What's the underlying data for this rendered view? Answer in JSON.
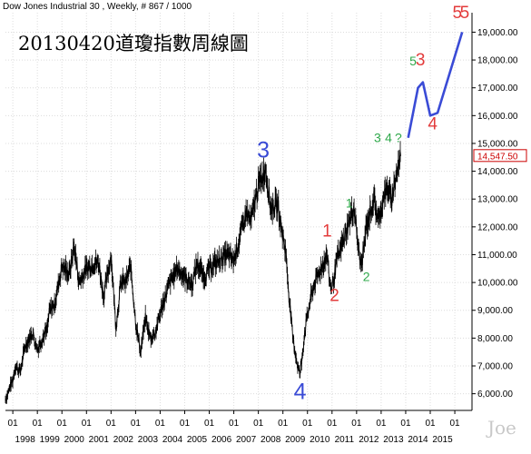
{
  "header": {
    "text": "Dow Jones Industrial 30 , Weekly, # 867 / 1000"
  },
  "annotation_title": "20130420道瓊指數周線圖",
  "signature": "Joe",
  "colors": {
    "price": "#000000",
    "grid": "#dcdcdc",
    "wave_blue": "#3a4bd6",
    "wave_red": "#e33b3b",
    "wave_green": "#2ea84a",
    "last_box": "#cc0000"
  },
  "chart_data": {
    "type": "line",
    "title": "Dow Jones Industrial 30 , Weekly, # 867 / 1000",
    "ylim": [
      5400,
      19700
    ],
    "xlim": [
      1997.2,
      2016.2
    ],
    "y_ticks": [
      6000,
      7000,
      8000,
      9000,
      10000,
      11000,
      12000,
      13000,
      14000,
      15000,
      16000,
      17000,
      18000,
      19000
    ],
    "y_tick_labels": [
      "6,000.00",
      "7,000.00",
      "8,000.00",
      "9,000.00",
      "10,000.00",
      "11,000.00",
      "12,000.00",
      "13,000.00",
      "14,000.00",
      "15,000.00",
      "16,000.00",
      "17,000.00",
      "18,000.00",
      "19,000.00"
    ],
    "x_ticks": [
      1997.5,
      1998.5,
      1999.5,
      2000.5,
      2001.5,
      2002.5,
      2003.5,
      2004.5,
      2005.5,
      2006.5,
      2007.5,
      2008.5,
      2009.5,
      2010.5,
      2011.5,
      2012.5,
      2013.5,
      2014.5,
      2015.5
    ],
    "month_labels": [
      "01",
      "01",
      "01",
      "01",
      "01",
      "01",
      "01",
      "01",
      "01",
      "01",
      "01",
      "01",
      "01",
      "01",
      "01",
      "01",
      "01",
      "01",
      "01"
    ],
    "year_labels": [
      "1998",
      "1999",
      "2000",
      "2001",
      "2002",
      "2003",
      "2004",
      "2005",
      "2006",
      "2007",
      "2008",
      "2009",
      "2010",
      "2011",
      "2012",
      "2013",
      "2014",
      "2015"
    ],
    "last_value": 14547.5,
    "last_value_label": "14,547.50",
    "series": [
      {
        "name": "Dow Jones Industrial 30",
        "points": [
          [
            1997.2,
            5800
          ],
          [
            1997.5,
            6500
          ],
          [
            1997.6,
            7000
          ],
          [
            1997.8,
            6800
          ],
          [
            1998.0,
            7700
          ],
          [
            1998.3,
            8200
          ],
          [
            1998.5,
            7600
          ],
          [
            1998.7,
            8000
          ],
          [
            1998.9,
            8300
          ],
          [
            1999.0,
            9000
          ],
          [
            1999.2,
            9200
          ],
          [
            1999.5,
            10600
          ],
          [
            1999.8,
            10300
          ],
          [
            2000.0,
            11300
          ],
          [
            2000.2,
            10000
          ],
          [
            2000.5,
            10500
          ],
          [
            2000.8,
            10700
          ],
          [
            2001.0,
            10700
          ],
          [
            2001.2,
            9500
          ],
          [
            2001.5,
            11000
          ],
          [
            2001.7,
            8400
          ],
          [
            2001.9,
            10000
          ],
          [
            2002.1,
            10000
          ],
          [
            2002.3,
            10600
          ],
          [
            2002.5,
            8600
          ],
          [
            2002.7,
            7500
          ],
          [
            2002.9,
            8700
          ],
          [
            2003.1,
            8000
          ],
          [
            2003.3,
            8200
          ],
          [
            2003.6,
            9200
          ],
          [
            2003.9,
            10000
          ],
          [
            2004.2,
            10500
          ],
          [
            2004.5,
            10200
          ],
          [
            2004.8,
            9900
          ],
          [
            2005.0,
            10700
          ],
          [
            2005.3,
            10200
          ],
          [
            2005.6,
            10600
          ],
          [
            2005.9,
            10800
          ],
          [
            2006.2,
            11000
          ],
          [
            2006.5,
            10800
          ],
          [
            2006.8,
            11800
          ],
          [
            2007.0,
            12500
          ],
          [
            2007.2,
            12200
          ],
          [
            2007.5,
            13500
          ],
          [
            2007.7,
            13900
          ],
          [
            2007.8,
            14100
          ],
          [
            2008.0,
            12700
          ],
          [
            2008.3,
            12800
          ],
          [
            2008.4,
            12100
          ],
          [
            2008.6,
            11200
          ],
          [
            2008.8,
            9000
          ],
          [
            2008.9,
            8000
          ],
          [
            2009.1,
            7000
          ],
          [
            2009.2,
            6700
          ],
          [
            2009.4,
            8300
          ],
          [
            2009.6,
            9300
          ],
          [
            2009.8,
            10000
          ],
          [
            2010.1,
            10600
          ],
          [
            2010.3,
            11000
          ],
          [
            2010.4,
            10000
          ],
          [
            2010.5,
            9800
          ],
          [
            2010.7,
            10800
          ],
          [
            2011.0,
            11600
          ],
          [
            2011.2,
            12200
          ],
          [
            2011.4,
            12700
          ],
          [
            2011.6,
            11000
          ],
          [
            2011.7,
            10600
          ],
          [
            2011.9,
            12000
          ],
          [
            2012.2,
            13000
          ],
          [
            2012.4,
            12200
          ],
          [
            2012.6,
            13100
          ],
          [
            2012.8,
            13400
          ],
          [
            2012.9,
            12900
          ],
          [
            2013.1,
            13800
          ],
          [
            2013.3,
            14547.5
          ]
        ]
      }
    ],
    "projection": [
      [
        2013.6,
        15200
      ],
      [
        2014.0,
        17000
      ],
      [
        2014.2,
        17200
      ],
      [
        2014.5,
        16000
      ],
      [
        2014.8,
        16100
      ],
      [
        2015.8,
        19000
      ]
    ],
    "annotations": [
      {
        "text": "3",
        "x": 2007.7,
        "y": 14500,
        "color": "blue",
        "size": "large"
      },
      {
        "text": "4",
        "x": 2009.2,
        "y": 5800,
        "color": "blue",
        "size": "large"
      },
      {
        "text": "1",
        "x": 2010.3,
        "y": 11650,
        "color": "red",
        "size": "medium"
      },
      {
        "text": "2",
        "x": 2010.6,
        "y": 9330,
        "color": "red",
        "size": "medium"
      },
      {
        "text": "1",
        "x": 2011.2,
        "y": 12700,
        "color": "green",
        "size": "small"
      },
      {
        "text": "2",
        "x": 2011.9,
        "y": 10050,
        "color": "green",
        "size": "small"
      },
      {
        "text": "3",
        "x": 2012.35,
        "y": 15050,
        "color": "green",
        "size": "small"
      },
      {
        "text": "4",
        "x": 2012.8,
        "y": 15050,
        "color": "green",
        "size": "small"
      },
      {
        "text": "?",
        "x": 2013.2,
        "y": 15050,
        "color": "green",
        "size": "small"
      },
      {
        "text": "5",
        "x": 2013.8,
        "y": 17800,
        "color": "green",
        "size": "small"
      },
      {
        "text": "3",
        "x": 2014.1,
        "y": 17800,
        "color": "red",
        "size": "medium"
      },
      {
        "text": "4",
        "x": 2014.6,
        "y": 15500,
        "color": "red",
        "size": "medium"
      },
      {
        "text": "5",
        "x": 2015.6,
        "y": 19500,
        "color": "red",
        "size": "medium"
      },
      {
        "text": "5",
        "x": 2015.9,
        "y": 19500,
        "color": "red",
        "size": "medium"
      }
    ]
  }
}
